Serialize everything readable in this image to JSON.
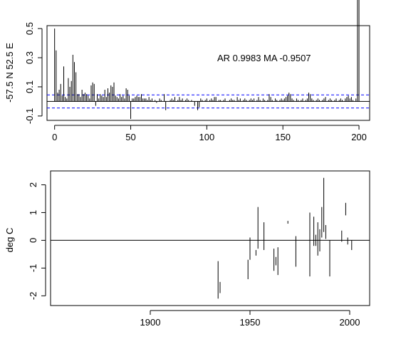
{
  "chart_data": [
    {
      "type": "bar",
      "subtype": "autocorrelation",
      "title": "",
      "xlabel": "",
      "ylabel": "-57.5 N 52.5 E",
      "annotation": "AR 0.9983  MA -0.9507",
      "xlim": [
        -5,
        207
      ],
      "ylim": [
        -0.13,
        0.52
      ],
      "xticks": [
        0,
        50,
        100,
        150,
        200
      ],
      "yticks": [
        -0.1,
        0.1,
        0.3,
        0.5
      ],
      "xtick_labels": [
        "0",
        "50",
        "100",
        "150",
        "200"
      ],
      "ytick_labels": [
        "-0.1",
        "0.1",
        "0.3",
        "0.5"
      ],
      "confidence_band": [
        -0.045,
        0.045
      ],
      "confidence_band_color": "#0000ff",
      "zero_line": 0,
      "grid": false,
      "lags": [
        0,
        1,
        2,
        3,
        4,
        5,
        6,
        7,
        8,
        9,
        10,
        11,
        12,
        13,
        14,
        15,
        16,
        17,
        18,
        19,
        20,
        21,
        22,
        23,
        24,
        25,
        26,
        27,
        28,
        29,
        30,
        31,
        32,
        33,
        34,
        35,
        36,
        37,
        38,
        39,
        40,
        41,
        42,
        43,
        44,
        45,
        46,
        47,
        48,
        49,
        50,
        51,
        52,
        53,
        54,
        55,
        56,
        57,
        58,
        59,
        60,
        61,
        62,
        63,
        64,
        65,
        66,
        67,
        68,
        69,
        70,
        71,
        72,
        73,
        74,
        75,
        76,
        77,
        78,
        79,
        80,
        81,
        82,
        83,
        84,
        85,
        86,
        87,
        88,
        89,
        90,
        91,
        92,
        93,
        94,
        95,
        96,
        97,
        98,
        99,
        100,
        101,
        102,
        103,
        104,
        105,
        106,
        107,
        108,
        109,
        110,
        111,
        112,
        113,
        114,
        115,
        116,
        117,
        118,
        119,
        120,
        121,
        122,
        123,
        124,
        125,
        126,
        127,
        128,
        129,
        130,
        131,
        132,
        133,
        134,
        135,
        136,
        137,
        138,
        139,
        140,
        141,
        142,
        143,
        144,
        145,
        146,
        147,
        148,
        149,
        150,
        151,
        152,
        153,
        154,
        155,
        156,
        157,
        158,
        159,
        160,
        161,
        162,
        163,
        164,
        165,
        166,
        167,
        168,
        169,
        170,
        171,
        172,
        173,
        174,
        175,
        176,
        177,
        178,
        179,
        180,
        181,
        182,
        183,
        184,
        185,
        186,
        187,
        188,
        189,
        190,
        191,
        192,
        193,
        194,
        195,
        196,
        197,
        198,
        199,
        200
      ],
      "values": [
        0.5,
        0.35,
        0.06,
        0.08,
        0.12,
        0.04,
        0.24,
        0.03,
        0.02,
        0.16,
        0.1,
        0.14,
        0.32,
        0.27,
        0.2,
        0.05,
        0.05,
        0.03,
        0.08,
        0.05,
        0.06,
        0.05,
        0.04,
        0.02,
        0.11,
        0.13,
        0.12,
        -0.03,
        0.05,
        0.02,
        0.05,
        0.04,
        0.03,
        0.08,
        0.03,
        0.09,
        0.06,
        0.11,
        0.1,
        0.13,
        0.04,
        0.03,
        0.02,
        0.05,
        0.03,
        0.04,
        0.02,
        0.09,
        0.08,
        0.04,
        -0.12,
        0.02,
        0.02,
        0.03,
        0.04,
        0.03,
        0.03,
        0.05,
        0.02,
        0.02,
        0.02,
        0.01,
        0.03,
        0.01,
        0.02,
        0.0,
        0.01,
        -0.01,
        0.0,
        0.02,
        0.01,
        0.0,
        0.05,
        -0.06,
        0.0,
        0.0,
        0.01,
        0.02,
        0.01,
        0.03,
        0.0,
        0.01,
        0.03,
        0.01,
        0.02,
        0.0,
        0.01,
        0.02,
        0.01,
        0.0,
        0.01,
        0.0,
        -0.03,
        0.0,
        -0.06,
        -0.04,
        0.02,
        0.01,
        0.0,
        0.01,
        0.02,
        0.0,
        0.01,
        0.02,
        0.01,
        0.03,
        0.03,
        0.0,
        0.01,
        0.01,
        0.0,
        0.01,
        0.02,
        0.0,
        0.0,
        0.01,
        0.02,
        0.01,
        0.01,
        0.0,
        0.03,
        0.01,
        0.02,
        0.0,
        0.01,
        0.02,
        0.01,
        0.0,
        0.01,
        0.02,
        0.01,
        0.02,
        0.0,
        0.01,
        0.03,
        0.01,
        0.0,
        0.02,
        0.01,
        0.0,
        0.01,
        0.05,
        0.03,
        0.01,
        0.0,
        0.02,
        0.01,
        0.0,
        0.01,
        0.02,
        0.01,
        0.02,
        0.03,
        0.04,
        0.06,
        0.05,
        0.02,
        0.01,
        0.0,
        0.02,
        0.01,
        0.0,
        0.01,
        0.02,
        0.0,
        0.01,
        0.02,
        0.06,
        0.05,
        0.02,
        0.01,
        0.0,
        0.01,
        0.02,
        0.01,
        0.0,
        0.01,
        0.02,
        0.03,
        0.0,
        0.01,
        0.02,
        0.01,
        0.0,
        0.01,
        0.02,
        0.0,
        0.01,
        0.02,
        0.01,
        0.0,
        0.02,
        0.03,
        0.04,
        0.02,
        0.03,
        0.01,
        0.0,
        0.02
      ]
    },
    {
      "type": "bar",
      "subtype": "interval-segments",
      "title": "",
      "xlabel": "",
      "ylabel": "deg C",
      "xlim": [
        1850,
        2010
      ],
      "ylim": [
        -2.35,
        2.5
      ],
      "xticks": [
        1900,
        1950,
        2000
      ],
      "yticks": [
        -2,
        -1,
        0,
        1,
        2
      ],
      "xtick_labels": [
        "1900",
        "1950",
        "2000"
      ],
      "ytick_labels": [
        "-2",
        "-1",
        "0",
        "1",
        "2"
      ],
      "zero_line": 0,
      "grid": false,
      "segments": [
        {
          "x": 1934,
          "y0": -2.1,
          "y1": -0.75
        },
        {
          "x": 1935,
          "y0": -1.9,
          "y1": -1.5
        },
        {
          "x": 1949,
          "y0": -1.4,
          "y1": -0.7
        },
        {
          "x": 1950,
          "y0": -0.7,
          "y1": 0.1
        },
        {
          "x": 1953,
          "y0": -0.55,
          "y1": -0.35
        },
        {
          "x": 1954,
          "y0": -0.3,
          "y1": 1.2
        },
        {
          "x": 1957,
          "y0": -0.35,
          "y1": 0.65
        },
        {
          "x": 1962,
          "y0": -1.1,
          "y1": -0.3
        },
        {
          "x": 1963,
          "y0": -0.9,
          "y1": -0.6
        },
        {
          "x": 1964,
          "y0": -1.25,
          "y1": -0.25
        },
        {
          "x": 1969,
          "y0": 0.6,
          "y1": 0.7
        },
        {
          "x": 1973,
          "y0": -0.95,
          "y1": 0.15
        },
        {
          "x": 1980,
          "y0": -1.3,
          "y1": 1.0
        },
        {
          "x": 1982,
          "y0": -0.2,
          "y1": 0.85
        },
        {
          "x": 1983,
          "y0": -0.2,
          "y1": 0.2
        },
        {
          "x": 1984,
          "y0": -0.55,
          "y1": 0.65
        },
        {
          "x": 1985,
          "y0": -0.4,
          "y1": 0.4
        },
        {
          "x": 1986,
          "y0": 0.1,
          "y1": 1.2
        },
        {
          "x": 1987,
          "y0": 0.3,
          "y1": 2.25
        },
        {
          "x": 1988,
          "y0": 0.05,
          "y1": 0.55
        },
        {
          "x": 1990,
          "y0": -1.3,
          "y1": 0.0
        },
        {
          "x": 1996,
          "y0": -0.05,
          "y1": 0.35
        },
        {
          "x": 1998,
          "y0": 0.9,
          "y1": 1.35
        },
        {
          "x": 1999,
          "y0": -0.15,
          "y1": 0.1
        },
        {
          "x": 2001,
          "y0": -0.35,
          "y1": 0.0
        }
      ]
    }
  ]
}
